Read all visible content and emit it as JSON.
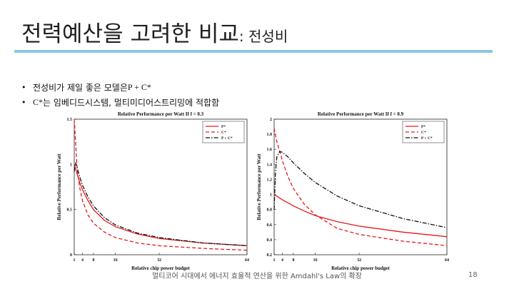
{
  "slide": {
    "title_main": "전력예산을 고려한 비교",
    "title_sub": ": 전성비",
    "bullets": [
      {
        "text_prefix": "전성비가 제일 좋은 모델은 ",
        "text_serif": "P + C*",
        "text_suffix": ""
      },
      {
        "text_prefix": "",
        "text_serif": "C*",
        "text_suffix": "는 임베디드시스템, 멀티미디어스트리밍에 적합함"
      }
    ],
    "footer": "멀티코어 시대에서 에너지 효율적 연산을 위한 Amdahl's Law의 확장",
    "page_number": "18"
  },
  "chart_data": [
    {
      "type": "line",
      "title": "Relative Performance per Watt If f = 0.3",
      "xlabel": "Relative chip power budget",
      "ylabel": "Relative Performance per Watt",
      "xlim": [
        1,
        64
      ],
      "ylim": [
        0,
        1.5
      ],
      "x_ticks": [
        1,
        4,
        8,
        16,
        32,
        64
      ],
      "y_ticks": [
        0,
        0.5,
        1,
        1.5
      ],
      "grid": false,
      "legend_position": "top-right",
      "series": [
        {
          "name": "P*",
          "color": "#e41a1c",
          "style": "solid",
          "x": [
            1,
            2,
            3,
            4,
            6,
            8,
            12,
            16,
            24,
            32,
            48,
            64
          ],
          "y": [
            1.0,
            0.9,
            0.8,
            0.72,
            0.6,
            0.5,
            0.38,
            0.31,
            0.23,
            0.18,
            0.13,
            0.1
          ]
        },
        {
          "name": "C*",
          "color": "#e41a1c",
          "style": "dashed",
          "x": [
            1,
            2,
            3,
            4,
            6,
            8,
            12,
            16,
            24,
            32,
            48,
            64
          ],
          "y": [
            1.5,
            0.98,
            0.74,
            0.6,
            0.44,
            0.35,
            0.25,
            0.19,
            0.13,
            0.1,
            0.07,
            0.05
          ]
        },
        {
          "name": "P + C*",
          "color": "#111111",
          "style": "dashdot",
          "x": [
            1,
            1.5,
            2,
            3,
            4,
            6,
            8,
            12,
            16,
            24,
            32,
            48,
            64
          ],
          "y": [
            0.92,
            1.02,
            0.97,
            0.86,
            0.77,
            0.64,
            0.54,
            0.41,
            0.33,
            0.24,
            0.19,
            0.13,
            0.1
          ]
        }
      ]
    },
    {
      "type": "line",
      "title": "Relative Performance per Watt If f = 0.9",
      "xlabel": "Relative chip power budget",
      "ylabel": "Relative Performance per Watt",
      "xlim": [
        1,
        64
      ],
      "ylim": [
        0.2,
        2
      ],
      "x_ticks": [
        1,
        4,
        8,
        16,
        32,
        64
      ],
      "y_ticks": [
        0.2,
        0.4,
        0.6,
        0.8,
        1,
        1.2,
        1.4,
        1.6,
        1.8,
        2
      ],
      "grid": false,
      "legend_position": "top-right",
      "series": [
        {
          "name": "P*",
          "color": "#e41a1c",
          "style": "solid",
          "x": [
            1,
            4,
            8,
            12,
            16,
            24,
            32,
            48,
            64
          ],
          "y": [
            1.0,
            0.93,
            0.85,
            0.78,
            0.72,
            0.64,
            0.58,
            0.5,
            0.44
          ]
        },
        {
          "name": "C*",
          "color": "#e41a1c",
          "style": "dashed",
          "x": [
            1,
            2,
            3,
            4,
            6,
            8,
            12,
            16,
            24,
            32,
            48,
            64
          ],
          "y": [
            1.88,
            1.7,
            1.58,
            1.45,
            1.24,
            1.08,
            0.87,
            0.73,
            0.55,
            0.47,
            0.38,
            0.32
          ]
        },
        {
          "name": "P + C*",
          "color": "#111111",
          "style": "dashdot",
          "x": [
            1,
            1.5,
            2,
            3,
            4,
            6,
            8,
            12,
            16,
            24,
            32,
            48,
            64
          ],
          "y": [
            0.8,
            1.3,
            1.5,
            1.57,
            1.56,
            1.5,
            1.42,
            1.28,
            1.16,
            0.98,
            0.85,
            0.68,
            0.56
          ]
        }
      ]
    }
  ]
}
